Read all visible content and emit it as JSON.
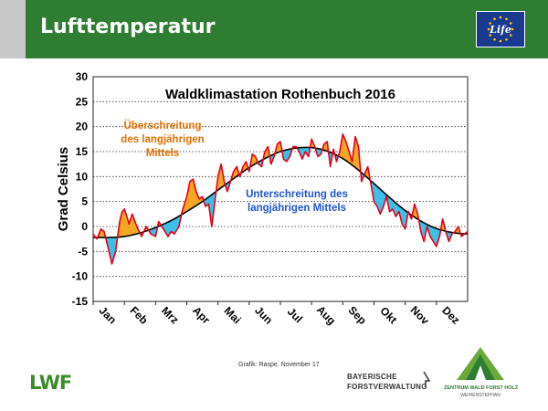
{
  "header": {
    "title": "Lufttemperatur"
  },
  "logos": {
    "eu_life_text": "Life",
    "lwf_text": "LWF",
    "bayerische_line1": "BAYERISCHE",
    "bayerische_line2": "FORSTVERWALTUNG",
    "zentrum_line1": "ZENTRUM WALD FORST HOLZ",
    "zentrum_line2": "WEIHENSTEPHAN"
  },
  "source_note": "Grafik: Raspe, November 17",
  "colors": {
    "header_green": "#2e7d32",
    "above_fill": "#f5a623",
    "below_fill": "#3cc0e8",
    "temperature_line": "#e2001a",
    "mean_line": "#000000",
    "above_text": "#e07000",
    "below_text": "#2255cc"
  },
  "chart_data": {
    "type": "area",
    "title": "Waldklimastation Rothenbuch 2016",
    "ylabel": "Grad Celsius",
    "xlabel": "",
    "ylim": [
      -15,
      30
    ],
    "yticks": [
      30,
      25,
      20,
      15,
      10,
      5,
      0,
      -5,
      -10,
      -15
    ],
    "grid": true,
    "x_unit": "month",
    "xlim": [
      0,
      12
    ],
    "months": [
      "Jan",
      "Feb",
      "Mrz",
      "Apr",
      "Mai",
      "Jun",
      "Jul",
      "Aug",
      "Sep",
      "Okt",
      "Nov",
      "Dez"
    ],
    "annotations": [
      {
        "text": [
          "Überschreitung",
          "des langjährigen",
          "Mittels"
        ],
        "kind": "above"
      },
      {
        "text": [
          "Unterschreitung des",
          "langjährigen Mittels"
        ],
        "kind": "below"
      }
    ],
    "series": [
      {
        "role": "mean",
        "x": [
          0,
          0.5,
          1,
          1.5,
          2,
          2.5,
          3,
          3.5,
          4,
          4.5,
          5,
          5.5,
          6,
          6.5,
          7,
          7.5,
          8,
          8.5,
          9,
          9.5,
          10,
          10.5,
          11,
          11.5,
          12
        ],
        "values": [
          -2.2,
          -2.2,
          -2.0,
          -1.3,
          -0.2,
          1.2,
          3.0,
          5.0,
          7.3,
          9.6,
          11.8,
          13.6,
          15.0,
          15.7,
          15.8,
          15.1,
          13.6,
          11.3,
          8.6,
          5.8,
          3.2,
          1.1,
          -0.4,
          -1.2,
          -1.5
        ]
      },
      {
        "role": "daily",
        "x": [
          0,
          0.12,
          0.25,
          0.35,
          0.45,
          0.6,
          0.72,
          0.85,
          0.93,
          1.0,
          1.08,
          1.15,
          1.25,
          1.4,
          1.55,
          1.7,
          1.85,
          2.0,
          2.1,
          2.25,
          2.4,
          2.5,
          2.6,
          2.75,
          2.85,
          3.0,
          3.1,
          3.2,
          3.3,
          3.4,
          3.5,
          3.6,
          3.7,
          3.8,
          3.9,
          4.0,
          4.1,
          4.2,
          4.3,
          4.4,
          4.5,
          4.6,
          4.7,
          4.8,
          4.9,
          5.0,
          5.1,
          5.2,
          5.3,
          5.4,
          5.5,
          5.6,
          5.7,
          5.8,
          5.9,
          6.0,
          6.1,
          6.2,
          6.3,
          6.4,
          6.5,
          6.6,
          6.7,
          6.8,
          6.9,
          7.0,
          7.1,
          7.2,
          7.3,
          7.4,
          7.5,
          7.6,
          7.7,
          7.8,
          7.9,
          8.0,
          8.1,
          8.2,
          8.3,
          8.4,
          8.5,
          8.6,
          8.7,
          8.8,
          8.9,
          9.0,
          9.1,
          9.2,
          9.3,
          9.4,
          9.5,
          9.6,
          9.7,
          9.8,
          9.9,
          10.0,
          10.1,
          10.2,
          10.3,
          10.4,
          10.5,
          10.6,
          10.7,
          10.8,
          10.9,
          11.0,
          11.1,
          11.2,
          11.3,
          11.4,
          11.5,
          11.6,
          11.7,
          11.8,
          11.9,
          12.0
        ],
        "values": [
          -1.5,
          -2.5,
          -0.5,
          -1.0,
          -3.5,
          -7.5,
          -5.0,
          1.0,
          3.0,
          3.5,
          2.0,
          0.5,
          2.5,
          0.0,
          -2.0,
          0.0,
          -1.5,
          -2.0,
          1.0,
          -0.5,
          -2.0,
          -1.0,
          -1.5,
          0.0,
          3.0,
          6.0,
          9.0,
          9.5,
          7.0,
          5.5,
          6.0,
          4.0,
          4.5,
          0.0,
          5.0,
          10.0,
          12.5,
          9.0,
          7.0,
          9.0,
          11.0,
          12.0,
          10.0,
          12.0,
          13.0,
          11.0,
          14.5,
          14.0,
          12.5,
          12.0,
          15.0,
          16.0,
          12.5,
          14.0,
          16.5,
          17.0,
          13.5,
          13.0,
          14.0,
          16.0,
          16.0,
          15.0,
          13.5,
          15.0,
          14.0,
          17.5,
          16.0,
          14.0,
          14.5,
          16.5,
          17.0,
          12.0,
          15.5,
          13.0,
          15.0,
          18.5,
          17.0,
          15.0,
          13.0,
          18.0,
          16.0,
          9.0,
          10.5,
          12.0,
          8.5,
          5.0,
          4.0,
          2.5,
          4.0,
          6.0,
          3.0,
          3.5,
          2.0,
          3.0,
          0.5,
          -0.5,
          3.0,
          1.5,
          4.5,
          2.5,
          -1.0,
          -3.0,
          0.0,
          -2.0,
          -3.0,
          -4.0,
          -2.0,
          1.5,
          -1.0,
          -3.0,
          -1.5,
          -1.0,
          0.0,
          -2.0,
          -1.5,
          -1.0
        ]
      }
    ]
  }
}
